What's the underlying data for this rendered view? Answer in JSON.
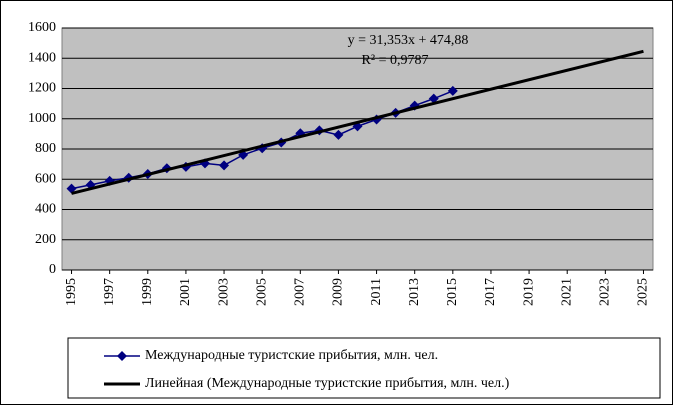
{
  "chart_data": {
    "type": "line",
    "xlim": [
      1994.5,
      2025.5
    ],
    "xticks": [
      1995,
      1997,
      1999,
      2001,
      2003,
      2005,
      2007,
      2009,
      2011,
      2013,
      2015,
      2017,
      2019,
      2021,
      2023,
      2025
    ],
    "ylim": [
      0,
      1600
    ],
    "yticks": [
      0,
      200,
      400,
      600,
      800,
      1000,
      1200,
      1400,
      1600
    ],
    "grid": true,
    "legend": "bottom",
    "series": [
      {
        "name": "Международные туристские прибытия, млн. чел.",
        "color": "#000080",
        "marker": "diamond",
        "x": [
          1995,
          1996,
          1997,
          1998,
          1999,
          2000,
          2001,
          2002,
          2003,
          2004,
          2005,
          2006,
          2007,
          2008,
          2009,
          2010,
          2011,
          2012,
          2013,
          2014,
          2015
        ],
        "values": [
          538,
          563,
          589,
          610,
          635,
          673,
          682,
          705,
          692,
          761,
          805,
          843,
          904,
          923,
          893,
          950,
          995,
          1039,
          1087,
          1133,
          1184
        ]
      },
      {
        "name": "Линейная (Международные туристские прибытия, млн. чел.)",
        "color": "#000000",
        "x": [
          1995,
          2025
        ],
        "values": [
          506,
          1446
        ]
      }
    ],
    "annotations": [
      "y = 31,353x + 474,88",
      "R² = 0,9787"
    ]
  }
}
